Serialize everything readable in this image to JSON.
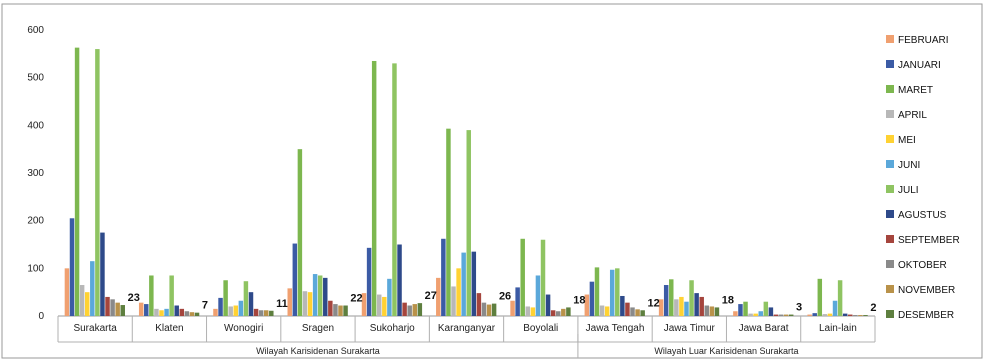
{
  "chart_data": {
    "type": "bar",
    "title": "",
    "xlabel": "",
    "ylabel": "",
    "ylim": [
      0,
      600
    ],
    "yticks": [
      0,
      100,
      200,
      300,
      400,
      500,
      600
    ],
    "grid": false,
    "legend_position": "right",
    "categories": [
      "Surakarta",
      "Klaten",
      "Wonogiri",
      "Sragen",
      "Sukoharjo",
      "Karanganyar",
      "Boyolali",
      "Jawa Tengah",
      "Jawa Timur",
      "Jawa Barat",
      "Lain-lain"
    ],
    "category_groups": [
      {
        "label": "Wilayah Karisidenan Surakarta",
        "categories": [
          "Surakarta",
          "Klaten",
          "Wonogiri",
          "Sragen",
          "Sukoharjo",
          "Karanganyar",
          "Boyolali"
        ]
      },
      {
        "label": "Wilayah Luar Karisidenan Surakarta",
        "categories": [
          "Jawa Tengah",
          "Jawa Timur",
          "Jawa Barat",
          "Lain-lain"
        ]
      }
    ],
    "series": [
      {
        "name": "FEBRUARI",
        "color": "#F0A070",
        "values": [
          100,
          28,
          15,
          58,
          48,
          80,
          32,
          45,
          35,
          10,
          3
        ]
      },
      {
        "name": "JANUARI",
        "color": "#3B5BA5",
        "values": [
          205,
          25,
          38,
          152,
          143,
          162,
          60,
          72,
          65,
          25,
          6
        ]
      },
      {
        "name": "MARET",
        "color": "#7DB74F",
        "values": [
          563,
          85,
          75,
          350,
          535,
          393,
          162,
          102,
          77,
          30,
          78
        ]
      },
      {
        "name": "APRIL",
        "color": "#B8B8B8",
        "values": [
          65,
          15,
          20,
          52,
          45,
          62,
          20,
          22,
          35,
          5,
          4
        ]
      },
      {
        "name": "MEI",
        "color": "#FFD233",
        "values": [
          50,
          12,
          22,
          50,
          40,
          100,
          18,
          20,
          40,
          5,
          5
        ]
      },
      {
        "name": "JUNI",
        "color": "#5BA8DA",
        "values": [
          115,
          15,
          32,
          88,
          78,
          133,
          85,
          97,
          30,
          10,
          32
        ]
      },
      {
        "name": "JULI",
        "color": "#8FC462",
        "values": [
          560,
          85,
          73,
          85,
          530,
          390,
          160,
          100,
          75,
          30,
          75
        ]
      },
      {
        "name": "AGUSTUS",
        "color": "#2E4A8A",
        "values": [
          175,
          22,
          50,
          80,
          150,
          135,
          45,
          42,
          48,
          18,
          5
        ]
      },
      {
        "name": "SEPTEMBER",
        "color": "#A5453D",
        "values": [
          40,
          15,
          15,
          32,
          28,
          48,
          12,
          28,
          40,
          3,
          3
        ]
      },
      {
        "name": "OKTOBER",
        "color": "#8A8A8A",
        "values": [
          35,
          10,
          12,
          25,
          22,
          28,
          10,
          18,
          22,
          3,
          2
        ]
      },
      {
        "name": "NOVEMBER",
        "color": "#B9924A",
        "values": [
          28,
          8,
          12,
          22,
          25,
          24,
          15,
          14,
          20,
          3,
          2
        ]
      },
      {
        "name": "DESEMBER",
        "color": "#5E7F3F",
        "values": [
          23,
          7,
          11,
          22,
          27,
          26,
          18,
          12,
          18,
          3,
          2
        ]
      }
    ],
    "data_labels": [
      "23",
      "7",
      "11",
      "22",
      "27",
      "26",
      "18",
      "12",
      "18",
      "3",
      "2"
    ]
  }
}
